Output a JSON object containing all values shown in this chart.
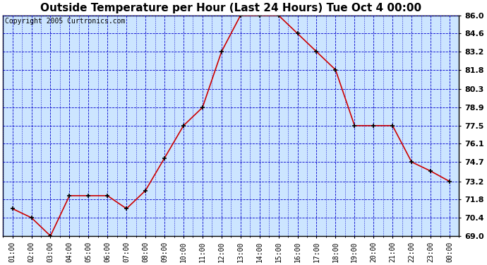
{
  "title": "Outside Temperature per Hour (Last 24 Hours) Tue Oct 4 00:00",
  "copyright": "Copyright 2005 Curtronics.com",
  "hours": [
    "01:00",
    "02:00",
    "03:00",
    "04:00",
    "05:00",
    "06:00",
    "07:00",
    "08:00",
    "09:00",
    "10:00",
    "11:00",
    "12:00",
    "13:00",
    "14:00",
    "15:00",
    "16:00",
    "17:00",
    "18:00",
    "19:00",
    "20:00",
    "21:00",
    "22:00",
    "23:00",
    "00:00"
  ],
  "temps": [
    71.1,
    70.4,
    69.0,
    72.1,
    72.1,
    72.1,
    71.1,
    72.5,
    75.0,
    77.5,
    78.9,
    83.2,
    86.0,
    86.0,
    86.0,
    84.6,
    83.2,
    81.8,
    77.5,
    77.5,
    77.5,
    74.7,
    74.0,
    73.2
  ],
  "ylim_min": 69.0,
  "ylim_max": 86.0,
  "yticks": [
    69.0,
    70.4,
    71.8,
    73.2,
    74.7,
    76.1,
    77.5,
    78.9,
    80.3,
    81.8,
    83.2,
    84.6,
    86.0
  ],
  "line_color": "#cc0000",
  "marker_color": "#000000",
  "bg_color": "#cce5ff",
  "fig_bg_color": "#ffffff",
  "grid_color": "#0000cc",
  "title_fontsize": 11,
  "copyright_fontsize": 7,
  "tick_fontsize": 7,
  "ytick_fontsize": 8
}
